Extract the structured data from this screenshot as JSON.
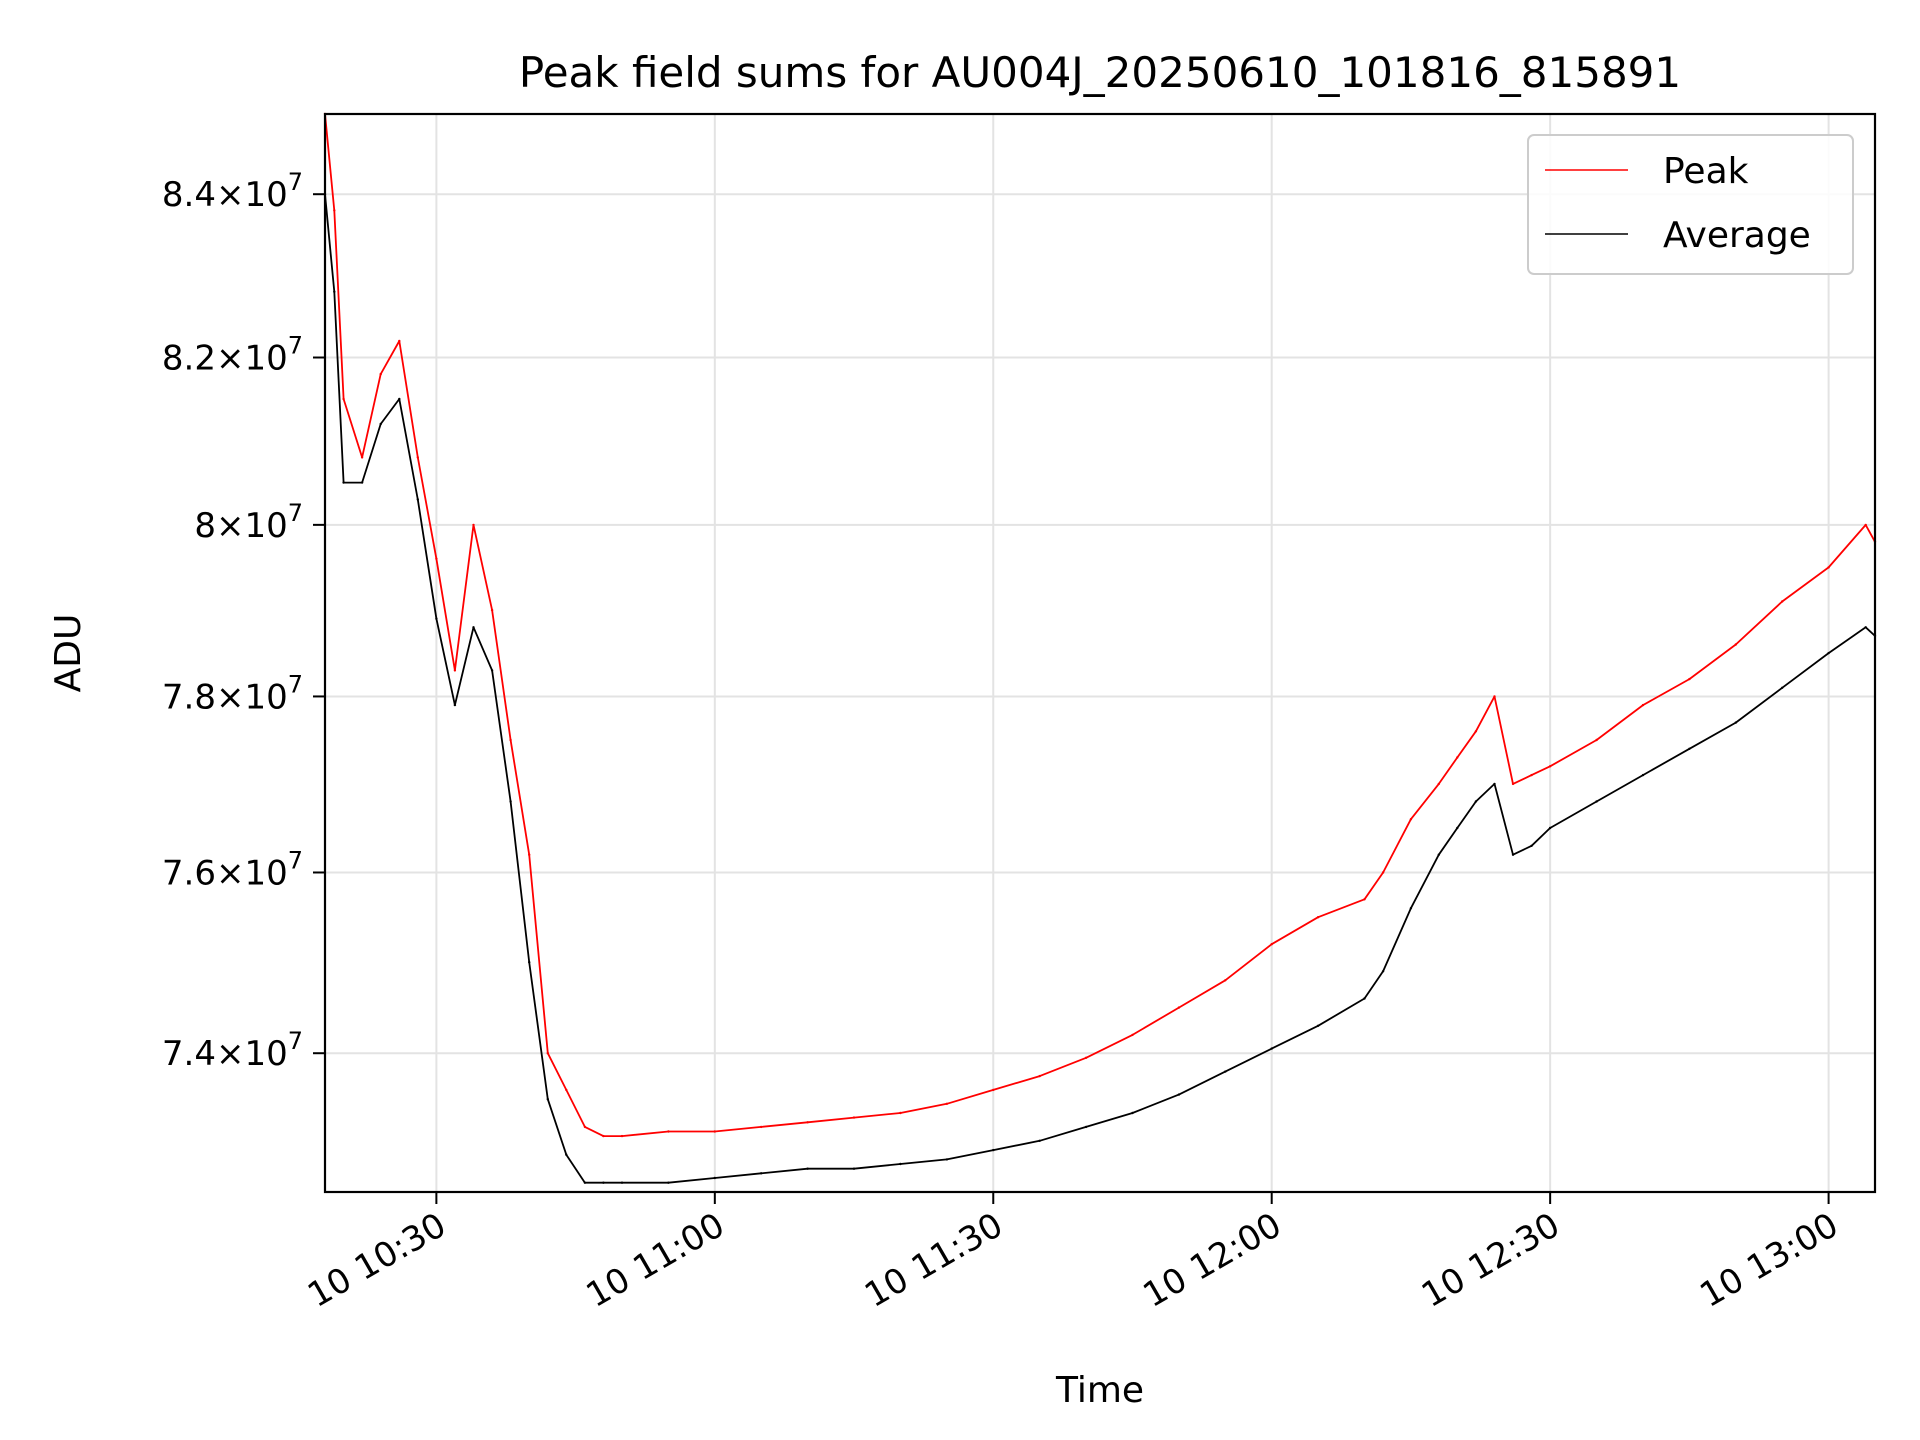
{
  "chart_data": {
    "type": "line",
    "title": "Peak field sums for AU004J_20250610_101816_815891",
    "xlabel": "Time",
    "ylabel": "ADU",
    "x_start": "2025-06-10 10:18",
    "x_end": "2025-06-10 13:05",
    "xlim": [
      "10 10:18",
      "10 13:05"
    ],
    "ylim": [
      72500000,
      85000000
    ],
    "y_scale": "log",
    "grid": true,
    "legend_position": "top-right",
    "x_ticks": [
      {
        "label": "10 10:30",
        "value": "10:30"
      },
      {
        "label": "10 11:00",
        "value": "11:00"
      },
      {
        "label": "10 11:30",
        "value": "11:30"
      },
      {
        "label": "10 12:00",
        "value": "12:00"
      },
      {
        "label": "10 12:30",
        "value": "12:30"
      },
      {
        "label": "10 13:00",
        "value": "13:00"
      }
    ],
    "y_ticks": [
      {
        "mantissa": "7.4",
        "exponent": "7",
        "value": 74000000
      },
      {
        "mantissa": "7.6",
        "exponent": "7",
        "value": 76000000
      },
      {
        "mantissa": "7.8",
        "exponent": "7",
        "value": 78000000
      },
      {
        "mantissa": "8",
        "exponent": "7",
        "value": 80000000
      },
      {
        "mantissa": "8.2",
        "exponent": "7",
        "value": 82000000
      },
      {
        "mantissa": "8.4",
        "exponent": "7",
        "value": 84000000
      }
    ],
    "series": [
      {
        "name": "Peak",
        "color": "#ff0000",
        "x": [
          "10:18",
          "10:19",
          "10:20",
          "10:22",
          "10:24",
          "10:26",
          "10:28",
          "10:30",
          "10:32",
          "10:34",
          "10:36",
          "10:38",
          "10:40",
          "10:42",
          "10:44",
          "10:46",
          "10:48",
          "10:50",
          "10:55",
          "11:00",
          "11:05",
          "11:10",
          "11:15",
          "11:20",
          "11:25",
          "11:30",
          "11:35",
          "11:40",
          "11:45",
          "11:50",
          "11:55",
          "12:00",
          "12:05",
          "12:10",
          "12:12",
          "12:15",
          "12:18",
          "12:20",
          "12:22",
          "12:24",
          "12:26",
          "12:28",
          "12:30",
          "12:35",
          "12:40",
          "12:45",
          "12:50",
          "12:55",
          "13:00",
          "13:04",
          "13:05"
        ],
        "y": [
          85000000,
          83800000,
          81500000,
          80800000,
          81800000,
          82200000,
          80800000,
          79600000,
          78300000,
          80000000,
          79000000,
          77500000,
          76200000,
          74000000,
          73600000,
          73200000,
          73100000,
          73100000,
          73150000,
          73150000,
          73200000,
          73250000,
          73300000,
          73350000,
          73450000,
          73600000,
          73750000,
          73950000,
          74200000,
          74500000,
          74800000,
          75200000,
          75500000,
          75700000,
          76000000,
          76600000,
          77000000,
          77300000,
          77600000,
          78000000,
          77000000,
          77100000,
          77200000,
          77500000,
          77900000,
          78200000,
          78600000,
          79100000,
          79500000,
          80000000,
          79800000
        ]
      },
      {
        "name": "Average",
        "color": "#000000",
        "x": [
          "10:18",
          "10:19",
          "10:20",
          "10:22",
          "10:24",
          "10:26",
          "10:28",
          "10:30",
          "10:32",
          "10:34",
          "10:36",
          "10:38",
          "10:40",
          "10:42",
          "10:44",
          "10:46",
          "10:48",
          "10:50",
          "10:55",
          "11:00",
          "11:05",
          "11:10",
          "11:15",
          "11:20",
          "11:25",
          "11:30",
          "11:35",
          "11:40",
          "11:45",
          "11:50",
          "11:55",
          "12:00",
          "12:05",
          "12:10",
          "12:12",
          "12:15",
          "12:18",
          "12:20",
          "12:22",
          "12:24",
          "12:26",
          "12:28",
          "12:30",
          "12:35",
          "12:40",
          "12:45",
          "12:50",
          "12:55",
          "13:00",
          "13:04",
          "13:05"
        ],
        "y": [
          84000000,
          82800000,
          80500000,
          80500000,
          81200000,
          81500000,
          80300000,
          78900000,
          77900000,
          78800000,
          78300000,
          76800000,
          75000000,
          73500000,
          72900000,
          72600000,
          72600000,
          72600000,
          72600000,
          72650000,
          72700000,
          72750000,
          72750000,
          72800000,
          72850000,
          72950000,
          73050000,
          73200000,
          73350000,
          73550000,
          73800000,
          74050000,
          74300000,
          74600000,
          74900000,
          75600000,
          76200000,
          76500000,
          76800000,
          77000000,
          76200000,
          76300000,
          76500000,
          76800000,
          77100000,
          77400000,
          77700000,
          78100000,
          78500000,
          78800000,
          78700000
        ]
      }
    ]
  }
}
